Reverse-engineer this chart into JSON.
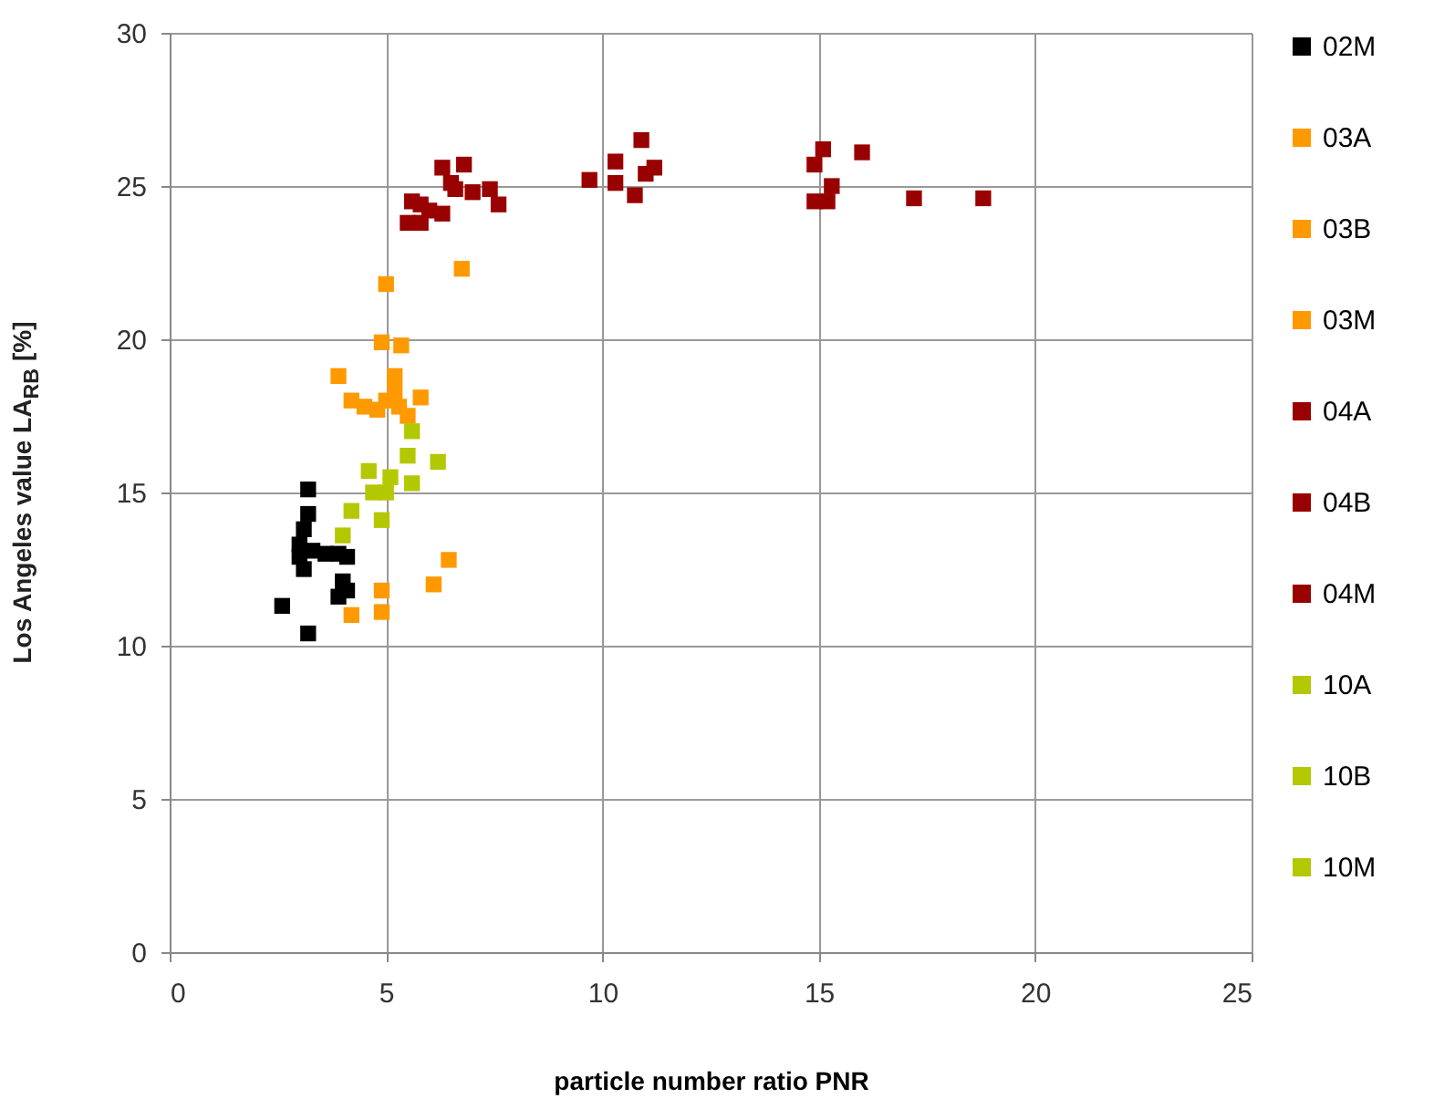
{
  "chart_data": {
    "type": "scatter",
    "xlabel": "particle number ratio PNR",
    "ylabel": "Los Angeles value LA$_{RB}$ [%]",
    "xlim": [
      0,
      25
    ],
    "xticks": [
      0,
      5,
      10,
      15,
      20,
      25
    ],
    "ylim": [
      0,
      30
    ],
    "yticks": [
      0,
      5,
      10,
      15,
      20,
      25,
      30
    ],
    "grid": true,
    "legend": "right",
    "marker": "square",
    "series": [
      {
        "name": "02M",
        "color": "#000000",
        "x": [
          2.6,
          3.2,
          3.2,
          3.2,
          3.1,
          3.0,
          3.0,
          3.1,
          3.3,
          3.6,
          3.9,
          4.1,
          4.0,
          3.9,
          4.1
        ],
        "values": [
          11.3,
          10.4,
          15.1,
          14.3,
          13.8,
          13.3,
          12.9,
          12.5,
          13.1,
          13.0,
          13.0,
          12.9,
          12.1,
          11.6,
          11.8
        ]
      },
      {
        "name": "03A",
        "color": "#ff9900",
        "x": [
          5.0,
          6.75,
          4.9,
          5.35,
          3.9,
          5.2,
          4.2
        ],
        "values": [
          21.8,
          22.3,
          19.9,
          19.8,
          18.8,
          18.8,
          18.0
        ]
      },
      {
        "name": "03B",
        "color": "#ff9900",
        "x": [
          6.45,
          6.1,
          4.9,
          4.9,
          4.2
        ],
        "values": [
          12.8,
          12.0,
          11.8,
          11.1,
          11.0
        ]
      },
      {
        "name": "03M",
        "color": "#ff9900",
        "x": [
          4.5,
          4.8,
          5.0,
          5.2,
          5.3,
          5.8,
          5.5
        ],
        "values": [
          17.8,
          17.7,
          18.0,
          18.3,
          17.8,
          18.1,
          17.5
        ]
      },
      {
        "name": "04A",
        "color": "#990000",
        "x": [
          5.5,
          5.6,
          5.8,
          5.8,
          6.3,
          6.3,
          6.5,
          6.6,
          6.0
        ],
        "values": [
          23.8,
          24.5,
          24.4,
          23.8,
          24.1,
          25.6,
          25.1,
          24.9,
          24.2
        ]
      },
      {
        "name": "04B",
        "color": "#990000",
        "x": [
          14.9,
          15.1,
          15.3,
          14.9,
          15.2,
          16.0,
          17.2,
          18.8
        ],
        "values": [
          25.7,
          26.2,
          25.0,
          24.5,
          24.5,
          26.1,
          24.6,
          24.6
        ]
      },
      {
        "name": "04M",
        "color": "#990000",
        "x": [
          6.8,
          7.0,
          7.4,
          7.6,
          9.7,
          10.3,
          10.3,
          10.9,
          10.75,
          11.2,
          11.0
        ],
        "values": [
          25.7,
          24.8,
          24.9,
          24.4,
          25.2,
          25.8,
          25.1,
          26.5,
          24.7,
          25.6,
          25.4
        ]
      },
      {
        "name": "10A",
        "color": "#b3c800",
        "x": [
          6.2,
          5.1,
          5.6,
          4.7
        ],
        "values": [
          16.0,
          15.5,
          15.3,
          15.0
        ]
      },
      {
        "name": "10B",
        "color": "#b3c800",
        "x": [
          4.0
        ],
        "values": [
          13.6
        ]
      },
      {
        "name": "10M",
        "color": "#b3c800",
        "x": [
          5.6,
          5.5,
          4.6,
          4.2,
          4.9,
          5.0
        ],
        "values": [
          17.0,
          16.2,
          15.7,
          14.4,
          14.1,
          15.0
        ]
      }
    ]
  }
}
